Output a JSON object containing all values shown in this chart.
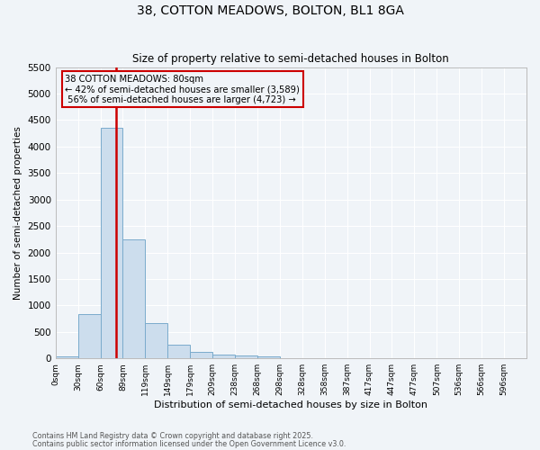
{
  "title": "38, COTTON MEADOWS, BOLTON, BL1 8GA",
  "subtitle": "Size of property relative to semi-detached houses in Bolton",
  "xlabel": "Distribution of semi-detached houses by size in Bolton",
  "ylabel": "Number of semi-detached properties",
  "bin_labels": [
    "0sqm",
    "30sqm",
    "60sqm",
    "89sqm",
    "119sqm",
    "149sqm",
    "179sqm",
    "209sqm",
    "238sqm",
    "268sqm",
    "298sqm",
    "328sqm",
    "358sqm",
    "387sqm",
    "417sqm",
    "447sqm",
    "477sqm",
    "507sqm",
    "536sqm",
    "566sqm",
    "596sqm"
  ],
  "bar_heights": [
    40,
    830,
    4350,
    2250,
    670,
    260,
    130,
    65,
    50,
    30,
    0,
    0,
    0,
    0,
    0,
    0,
    0,
    0,
    0,
    0,
    0
  ],
  "bar_color": "#ccdded",
  "bar_edge_color": "#7aabcc",
  "property_sqm": 80,
  "pct_smaller": 42,
  "n_smaller": 3589,
  "pct_larger": 56,
  "n_larger": 4723,
  "line_color": "#cc0000",
  "annotation_box_color": "#cc0000",
  "ylim": [
    0,
    5500
  ],
  "yticks": [
    0,
    500,
    1000,
    1500,
    2000,
    2500,
    3000,
    3500,
    4000,
    4500,
    5000,
    5500
  ],
  "background_color": "#f0f4f8",
  "grid_color": "#ffffff",
  "footnote_line1": "Contains HM Land Registry data © Crown copyright and database right 2025.",
  "footnote_line2": "Contains public sector information licensed under the Open Government Licence v3.0.",
  "bin_edges_sqm": [
    0,
    30,
    60,
    89,
    119,
    149,
    179,
    209,
    238,
    268,
    298,
    328,
    358,
    387,
    417,
    447,
    477,
    507,
    536,
    566,
    596,
    626
  ]
}
